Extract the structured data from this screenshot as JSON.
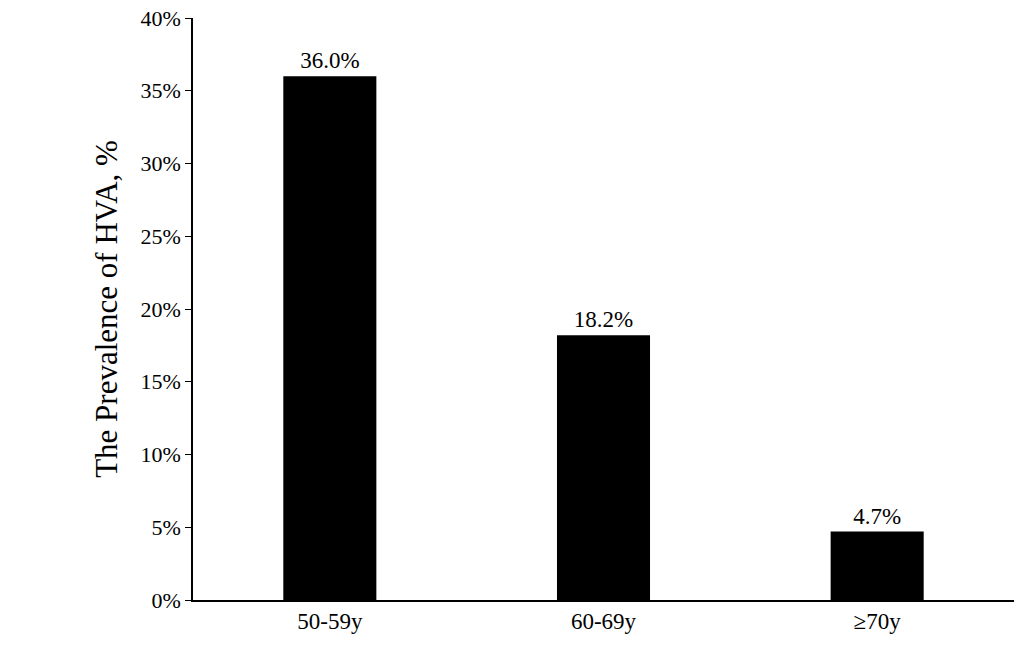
{
  "chart_data": {
    "type": "bar",
    "y_label": "The Prevalence of HVA, %",
    "categories": [
      "50-59y",
      "60-69y",
      "≥70y"
    ],
    "values": [
      36.0,
      18.2,
      4.7
    ],
    "value_labels": [
      "36.0%",
      "18.2%",
      "4.7%"
    ],
    "data_labels": true,
    "color": "#000000",
    "ylim": [
      0,
      40
    ],
    "yticks": [
      {
        "value": 0,
        "label": "0%"
      },
      {
        "value": 5,
        "label": "5%"
      },
      {
        "value": 10,
        "label": "10%"
      },
      {
        "value": 15,
        "label": "15%"
      },
      {
        "value": 20,
        "label": "20%"
      },
      {
        "value": 25,
        "label": "25%"
      },
      {
        "value": 30,
        "label": "30%"
      },
      {
        "value": 35,
        "label": "35%"
      },
      {
        "value": 40,
        "label": "40%"
      }
    ],
    "grid": false
  }
}
